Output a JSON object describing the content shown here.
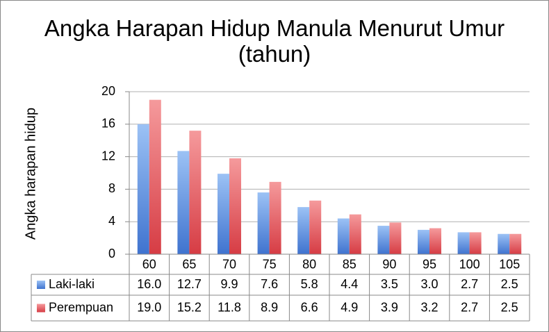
{
  "chart_data": {
    "type": "bar",
    "title": "Angka Harapan Hidup Manula Menurut Umur (tahun)",
    "y_label": "Angka harapan hidup",
    "categories": [
      "60",
      "65",
      "70",
      "75",
      "80",
      "85",
      "90",
      "95",
      "100",
      "105"
    ],
    "series": [
      {
        "name": "Laki-laki",
        "color": "#5b8fe0",
        "values": [
          16.0,
          12.7,
          9.9,
          7.6,
          5.8,
          4.4,
          3.5,
          3.0,
          2.7,
          2.5
        ],
        "value_labels": [
          "16.0",
          "12.7",
          "9.9",
          "7.6",
          "5.8",
          "4.4",
          "3.5",
          "3.0",
          "2.7",
          "2.5"
        ]
      },
      {
        "name": "Perempuan",
        "color": "#e5575d",
        "values": [
          19.0,
          15.2,
          11.8,
          8.9,
          6.6,
          4.9,
          3.9,
          3.2,
          2.7,
          2.5
        ],
        "value_labels": [
          "19.0",
          "15.2",
          "11.8",
          "8.9",
          "6.6",
          "4.9",
          "3.9",
          "3.2",
          "2.7",
          "2.5"
        ]
      }
    ],
    "ylim": [
      0,
      20
    ],
    "yticks": [
      0,
      4,
      8,
      12,
      16,
      20
    ],
    "grid": true
  }
}
